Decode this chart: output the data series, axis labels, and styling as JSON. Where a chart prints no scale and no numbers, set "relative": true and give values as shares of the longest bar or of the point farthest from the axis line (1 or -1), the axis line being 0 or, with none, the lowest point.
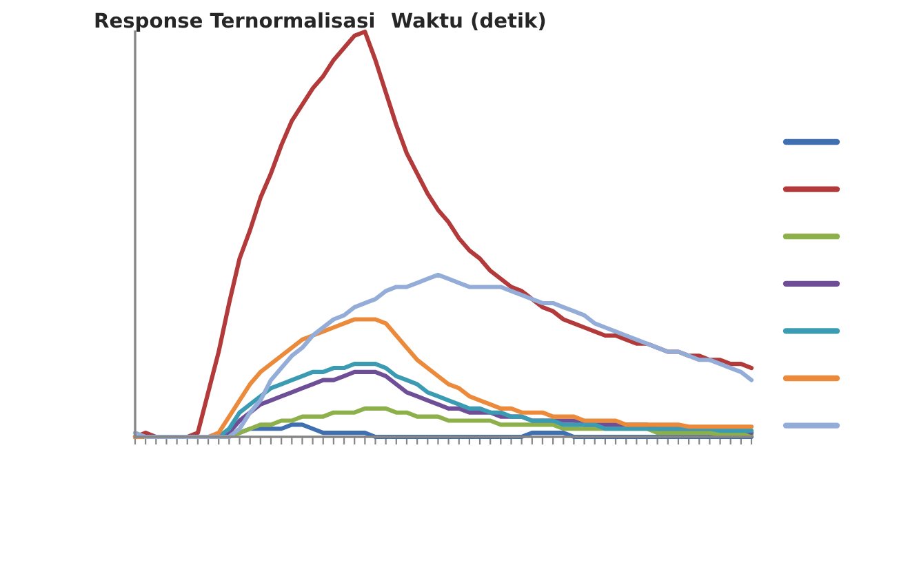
{
  "chart_data": {
    "type": "line",
    "ylabel": "Response Ternormalisasi",
    "xlabel": "Waktu (detik)",
    "relative": true,
    "categories": [
      null,
      null,
      null,
      null,
      null,
      null,
      null,
      null,
      null,
      null,
      null,
      null,
      null,
      null,
      null,
      null,
      null,
      null,
      null,
      null,
      null,
      null,
      null,
      null,
      null,
      null,
      null,
      null,
      null,
      null,
      null,
      null,
      null,
      null,
      null,
      null,
      null,
      null,
      null,
      null,
      null,
      null,
      null,
      null,
      null,
      null,
      null,
      null,
      null,
      null,
      null,
      null,
      null,
      null,
      null,
      null,
      null,
      null,
      null,
      null
    ],
    "series": [
      {
        "color": "#3f6fb0",
        "values": [
          0,
          0,
          0,
          0,
          0,
          0,
          0,
          0,
          0,
          0.01,
          0.01,
          0.02,
          0.02,
          0.02,
          0.02,
          0.03,
          0.03,
          0.02,
          0.01,
          0.01,
          0.01,
          0.01,
          0.01,
          0,
          0,
          0,
          0,
          0,
          0,
          0,
          0,
          0,
          0,
          0,
          0,
          0,
          0,
          0,
          0.01,
          0.01,
          0.01,
          0.01,
          0,
          0,
          0,
          0,
          0,
          0,
          0,
          0,
          0,
          0,
          0,
          0,
          0,
          0,
          0,
          0,
          0,
          0
        ]
      },
      {
        "color": "#b23a3a",
        "values": [
          0,
          0.01,
          0,
          0,
          0,
          0,
          0.01,
          0.11,
          0.21,
          0.33,
          0.44,
          0.51,
          0.59,
          0.65,
          0.72,
          0.78,
          0.82,
          0.86,
          0.89,
          0.93,
          0.96,
          0.99,
          1.0,
          0.93,
          0.85,
          0.77,
          0.7,
          0.65,
          0.6,
          0.56,
          0.53,
          0.49,
          0.46,
          0.44,
          0.41,
          0.39,
          0.37,
          0.36,
          0.34,
          0.32,
          0.31,
          0.29,
          0.28,
          0.27,
          0.26,
          0.25,
          0.25,
          0.24,
          0.23,
          0.23,
          0.22,
          0.21,
          0.21,
          0.2,
          0.2,
          0.19,
          0.19,
          0.18,
          0.18,
          0.17
        ]
      },
      {
        "color": "#8db04b",
        "values": [
          0,
          0,
          0,
          0,
          0,
          0,
          0,
          0,
          0,
          0,
          0.01,
          0.02,
          0.03,
          0.03,
          0.04,
          0.04,
          0.05,
          0.05,
          0.05,
          0.06,
          0.06,
          0.06,
          0.07,
          0.07,
          0.07,
          0.06,
          0.06,
          0.05,
          0.05,
          0.05,
          0.04,
          0.04,
          0.04,
          0.04,
          0.04,
          0.03,
          0.03,
          0.03,
          0.03,
          0.03,
          0.03,
          0.02,
          0.02,
          0.02,
          0.02,
          0.02,
          0.02,
          0.02,
          0.02,
          0.02,
          0.01,
          0.01,
          0.01,
          0.01,
          0.01,
          0.01,
          0.005,
          0.005,
          0.005,
          0.005
        ]
      },
      {
        "color": "#6e4e97",
        "values": [
          0,
          0,
          0,
          0,
          0,
          0,
          0,
          0,
          0,
          0.01,
          0.04,
          0.06,
          0.08,
          0.09,
          0.1,
          0.11,
          0.12,
          0.13,
          0.14,
          0.14,
          0.15,
          0.16,
          0.16,
          0.16,
          0.15,
          0.13,
          0.11,
          0.1,
          0.09,
          0.08,
          0.07,
          0.07,
          0.06,
          0.06,
          0.06,
          0.05,
          0.05,
          0.05,
          0.04,
          0.04,
          0.04,
          0.04,
          0.04,
          0.03,
          0.03,
          0.03,
          0.03,
          0.03,
          0.03,
          0.03,
          0.02,
          0.02,
          0.02,
          0.02,
          0.02,
          0.02,
          0.02,
          0.02,
          0.02,
          0.01
        ]
      },
      {
        "color": "#3b9bb3",
        "values": [
          0,
          0,
          0,
          0,
          0,
          0,
          0,
          0,
          0,
          0.02,
          0.06,
          0.08,
          0.1,
          0.12,
          0.13,
          0.14,
          0.15,
          0.16,
          0.16,
          0.17,
          0.17,
          0.18,
          0.18,
          0.18,
          0.17,
          0.15,
          0.14,
          0.13,
          0.11,
          0.1,
          0.09,
          0.08,
          0.07,
          0.07,
          0.06,
          0.06,
          0.05,
          0.05,
          0.04,
          0.04,
          0.04,
          0.03,
          0.03,
          0.03,
          0.03,
          0.02,
          0.02,
          0.02,
          0.02,
          0.02,
          0.02,
          0.02,
          0.02,
          0.02,
          0.02,
          0.02,
          0.015,
          0.015,
          0.015,
          0.015
        ]
      },
      {
        "color": "#ea8a3a",
        "values": [
          0,
          0,
          0,
          0,
          0,
          0,
          0,
          0,
          0.01,
          0.05,
          0.09,
          0.13,
          0.16,
          0.18,
          0.2,
          0.22,
          0.24,
          0.25,
          0.26,
          0.27,
          0.28,
          0.29,
          0.29,
          0.29,
          0.28,
          0.25,
          0.22,
          0.19,
          0.17,
          0.15,
          0.13,
          0.12,
          0.1,
          0.09,
          0.08,
          0.07,
          0.07,
          0.06,
          0.06,
          0.06,
          0.05,
          0.05,
          0.05,
          0.04,
          0.04,
          0.04,
          0.04,
          0.03,
          0.03,
          0.03,
          0.03,
          0.03,
          0.03,
          0.025,
          0.025,
          0.025,
          0.025,
          0.025,
          0.025,
          0.025
        ]
      },
      {
        "color": "#93add8",
        "values": [
          0.01,
          0,
          0,
          0,
          0,
          0,
          0,
          0,
          0,
          0,
          0.02,
          0.06,
          0.09,
          0.14,
          0.17,
          0.2,
          0.22,
          0.25,
          0.27,
          0.29,
          0.3,
          0.32,
          0.33,
          0.34,
          0.36,
          0.37,
          0.37,
          0.38,
          0.39,
          0.4,
          0.39,
          0.38,
          0.37,
          0.37,
          0.37,
          0.37,
          0.36,
          0.35,
          0.34,
          0.33,
          0.33,
          0.32,
          0.31,
          0.3,
          0.28,
          0.27,
          0.26,
          0.25,
          0.24,
          0.23,
          0.22,
          0.21,
          0.21,
          0.2,
          0.19,
          0.19,
          0.18,
          0.17,
          0.16,
          0.14
        ]
      }
    ]
  }
}
